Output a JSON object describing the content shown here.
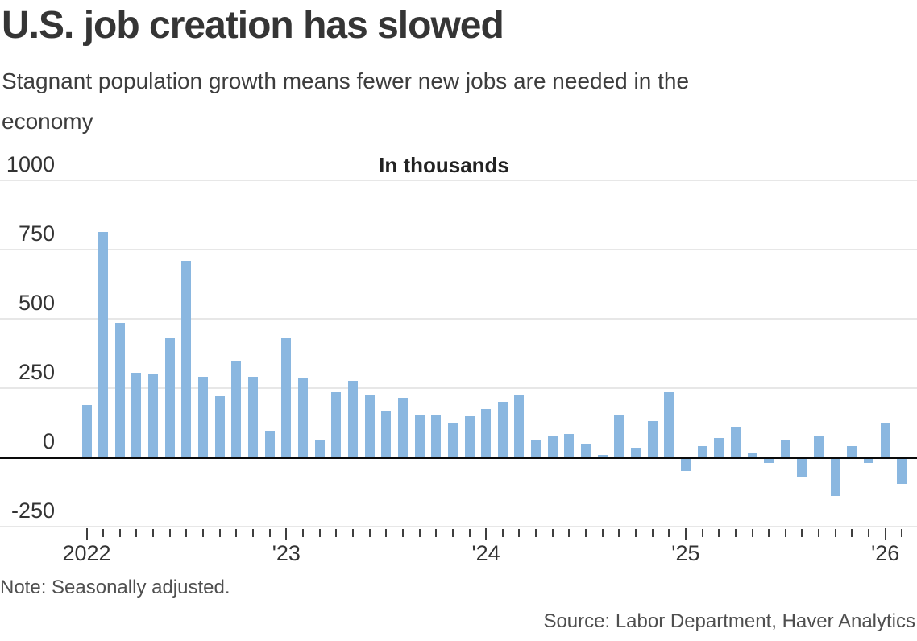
{
  "header": {
    "title": "U.S. job creation has slowed",
    "subtitle": "Stagnant population growth means fewer new jobs are needed in the economy"
  },
  "chart_data": {
    "type": "bar",
    "title": "U.S. job creation has slowed",
    "unit_label": "In thousands",
    "xlabel": "",
    "ylabel": "In thousands",
    "ylim": [
      -250,
      1000
    ],
    "y_ticks": [
      1000,
      750,
      500,
      250,
      0,
      -250
    ],
    "grid": true,
    "legend": "none",
    "bar_color": "#8ab7e0",
    "x": [
      "2022-01",
      "2022-02",
      "2022-03",
      "2022-04",
      "2022-05",
      "2022-06",
      "2022-07",
      "2022-08",
      "2022-09",
      "2022-10",
      "2022-11",
      "2022-12",
      "2023-01",
      "2023-02",
      "2023-03",
      "2023-04",
      "2023-05",
      "2023-06",
      "2023-07",
      "2023-08",
      "2023-09",
      "2023-10",
      "2023-11",
      "2023-12",
      "2024-01",
      "2024-02",
      "2024-03",
      "2024-04",
      "2024-05",
      "2024-06",
      "2024-07",
      "2024-08",
      "2024-09",
      "2024-10",
      "2024-11",
      "2024-12",
      "2025-01",
      "2025-02",
      "2025-03",
      "2025-04",
      "2025-05",
      "2025-06",
      "2025-07",
      "2025-08",
      "2025-09",
      "2025-10",
      "2025-11",
      "2025-12",
      "2026-01",
      "2026-02"
    ],
    "values": [
      190,
      815,
      485,
      305,
      300,
      430,
      710,
      290,
      220,
      350,
      290,
      95,
      430,
      285,
      65,
      235,
      275,
      225,
      165,
      215,
      155,
      155,
      125,
      150,
      175,
      200,
      225,
      60,
      75,
      85,
      50,
      10,
      155,
      35,
      130,
      235,
      -50,
      40,
      70,
      110,
      15,
      -20,
      65,
      -70,
      75,
      -140,
      40,
      -20,
      125,
      -95
    ],
    "year_labels": [
      {
        "month": "2022-01",
        "label": "2022"
      },
      {
        "month": "2023-01",
        "label": "'23"
      },
      {
        "month": "2024-01",
        "label": "'24"
      },
      {
        "month": "2025-01",
        "label": "'25"
      },
      {
        "month": "2026-01",
        "label": "'26"
      }
    ]
  },
  "footer": {
    "note": "Note: Seasonally adjusted.",
    "source": "Source: Labor Department, Haver Analytics"
  }
}
